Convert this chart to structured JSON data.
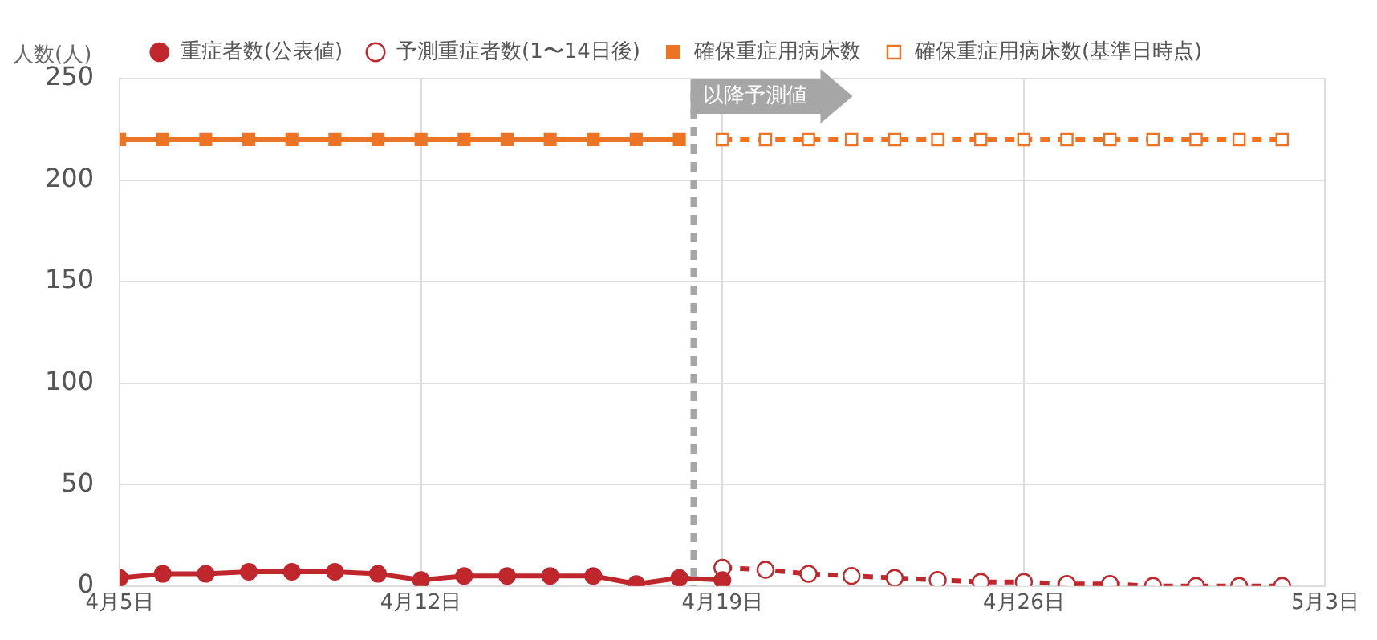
{
  "chart_data": {
    "type": "line",
    "ylabel": "人数(人)",
    "xlim": [
      "--04-05",
      "--05-03"
    ],
    "xticks": [
      {
        "value": "--04-05",
        "label": "4月5日"
      },
      {
        "value": "--04-12",
        "label": "4月12日"
      },
      {
        "value": "--04-19",
        "label": "4月19日"
      },
      {
        "value": "--04-26",
        "label": "4月26日"
      },
      {
        "value": "--05-03",
        "label": "5月3日"
      }
    ],
    "ylim": [
      0,
      250
    ],
    "yticks": [
      0,
      50,
      100,
      150,
      200,
      250
    ],
    "grid": true,
    "legend": "top",
    "ref_lines": [
      {
        "axis": "x",
        "value": "--04-18T08:00",
        "label": "以降予測値",
        "color": "#a6a6a6",
        "line_style": "dashed"
      }
    ],
    "series": [
      {
        "name": "重症者数(公表値)",
        "color": "#c0272d",
        "marker": "circle",
        "line_style": "solid",
        "x": [
          "--04-05",
          "--04-06",
          "--04-07",
          "--04-08",
          "--04-09",
          "--04-10",
          "--04-11",
          "--04-12",
          "--04-13",
          "--04-14",
          "--04-15",
          "--04-16",
          "--04-17",
          "--04-18",
          "--04-19"
        ],
        "values": [
          4,
          6,
          6,
          7,
          7,
          7,
          6,
          3,
          5,
          5,
          5,
          5,
          1,
          4,
          3
        ]
      },
      {
        "name": "予測重症者数(1〜14日後)",
        "color": "#c0272d",
        "marker": "circle",
        "line_style": "dashed",
        "x": [
          "--04-19",
          "--04-20",
          "--04-21",
          "--04-22",
          "--04-23",
          "--04-24",
          "--04-25",
          "--04-26",
          "--04-27",
          "--04-28",
          "--04-29",
          "--04-30",
          "--05-01",
          "--05-02"
        ],
        "values": [
          9,
          8,
          6,
          5,
          4,
          3,
          2,
          2,
          1,
          1,
          0,
          0,
          0,
          0
        ]
      },
      {
        "name": "確保重症用病床数",
        "color": "#ec7424",
        "marker": "square",
        "line_style": "solid",
        "x": [
          "--04-05",
          "--04-06",
          "--04-07",
          "--04-08",
          "--04-09",
          "--04-10",
          "--04-11",
          "--04-12",
          "--04-13",
          "--04-14",
          "--04-15",
          "--04-16",
          "--04-17",
          "--04-18"
        ],
        "values": [
          220,
          220,
          220,
          220,
          220,
          220,
          220,
          220,
          220,
          220,
          220,
          220,
          220,
          220
        ]
      },
      {
        "name": "確保重症用病床数(基準日時点)",
        "color": "#ec7424",
        "marker": "square",
        "line_style": "dashed",
        "x": [
          "--04-19",
          "--04-20",
          "--04-21",
          "--04-22",
          "--04-23",
          "--04-24",
          "--04-25",
          "--04-26",
          "--04-27",
          "--04-28",
          "--04-29",
          "--04-30",
          "--05-01",
          "--05-02"
        ],
        "values": [
          220,
          220,
          220,
          220,
          220,
          220,
          220,
          220,
          220,
          220,
          220,
          220,
          220,
          220
        ]
      }
    ]
  }
}
